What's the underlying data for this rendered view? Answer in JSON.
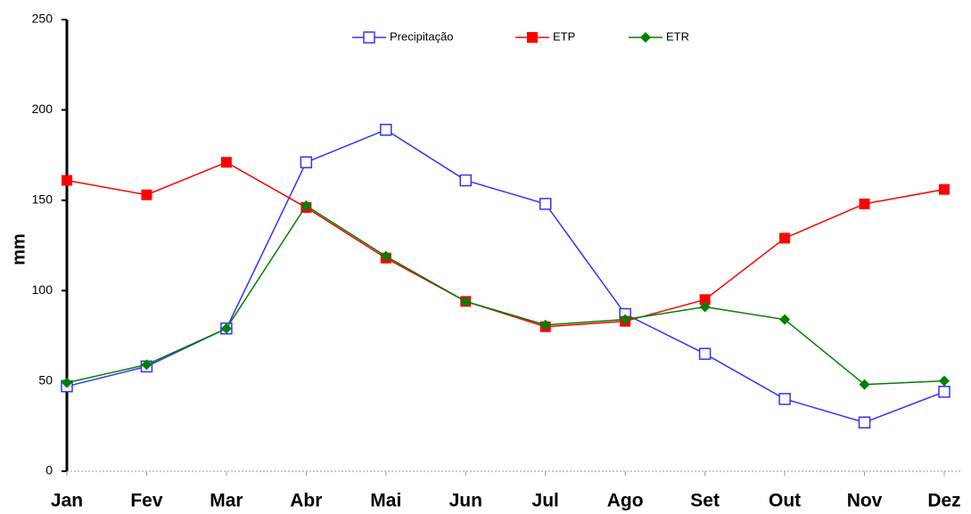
{
  "chart_data": {
    "type": "line",
    "ylabel": "mm",
    "categories": [
      "Jan",
      "Fev",
      "Mar",
      "Abr",
      "Mai",
      "Jun",
      "Jul",
      "Ago",
      "Set",
      "Out",
      "Nov",
      "Dez"
    ],
    "series": [
      {
        "name": "Precipitação",
        "color": "#3333ff",
        "marker": "square-open",
        "values": [
          47,
          58,
          79,
          171,
          189,
          161,
          148,
          87,
          65,
          40,
          27,
          44
        ]
      },
      {
        "name": "ETP",
        "color": "#ff0000",
        "marker": "square",
        "values": [
          161,
          153,
          171,
          146,
          118,
          94,
          80,
          83,
          95,
          129,
          148,
          156
        ]
      },
      {
        "name": "ETR",
        "color": "#008000",
        "marker": "diamond",
        "values": [
          49,
          59,
          79,
          147,
          119,
          94,
          81,
          84,
          91,
          84,
          48,
          50
        ]
      }
    ],
    "ylim": [
      0,
      250
    ],
    "yticks": [
      0,
      50,
      100,
      150,
      200,
      250
    ],
    "grid": false,
    "legend": "top"
  }
}
